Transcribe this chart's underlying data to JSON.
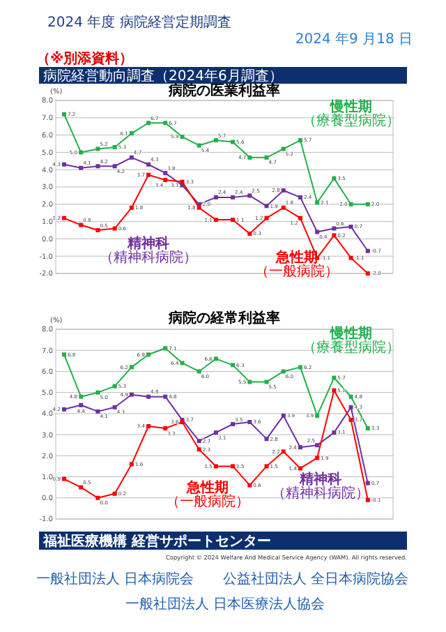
{
  "chart_data": [
    {
      "type": "line",
      "title": "病院の医業利益率",
      "ylabel": "(%)",
      "annotations": [
        "2024 年度 病院経営定期調査",
        "2024 年9 月18 日",
        "（※別添資料）",
        "病院経営動向調査（2024年6月調査）"
      ],
      "categories": [
        null,
        null,
        null,
        null,
        null,
        null,
        null,
        null,
        null,
        null,
        null,
        null,
        null,
        null,
        null,
        null,
        null,
        null,
        null,
        null
      ],
      "ylim": [
        -2,
        8
      ],
      "yticks": [
        {
          "value": -2,
          "label": "-2.0"
        },
        {
          "value": -1,
          "label": "-1.0"
        },
        {
          "value": 0,
          "label": "0.0"
        },
        {
          "value": 1,
          "label": "1.0"
        },
        {
          "value": 2,
          "label": "2.0"
        },
        {
          "value": 3,
          "label": "3.0"
        },
        {
          "value": 4,
          "label": "4.0"
        },
        {
          "value": 5,
          "label": "5.0"
        },
        {
          "value": 6,
          "label": "6.0"
        },
        {
          "value": 7,
          "label": "7.0"
        },
        {
          "value": 8,
          "label": "8.0"
        }
      ],
      "grid": "y",
      "marker": "square",
      "legend": false,
      "tick_labels": "y",
      "series": [
        {
          "name": "慢性期（療養型病院）",
          "color": "#22b04b",
          "values": [
            7.2,
            5.0,
            5.2,
            5.3,
            6.1,
            6.7,
            6.7,
            5.9,
            5.4,
            5.7,
            5.6,
            4.7,
            4.7,
            5.2,
            5.7,
            2.1,
            3.5,
            2.0,
            2.0,
            null
          ],
          "value_labels": [
            "7.2",
            "5.0",
            "5.2",
            "5.3",
            "6.1",
            "6.7",
            "6.7",
            "5.9",
            "5.4",
            "5.7",
            "5.6",
            "4.7",
            "4.7",
            "5.2",
            "5.7",
            "2.1",
            "3.5",
            "2.0",
            "2.0",
            null
          ]
        },
        {
          "name": "精神科（精神科病院）",
          "color": "#7030a0",
          "values": [
            4.3,
            4.1,
            4.2,
            4.2,
            4.7,
            4.3,
            3.8,
            3.1,
            2.0,
            2.4,
            2.4,
            2.5,
            1.9,
            2.8,
            2.4,
            0.4,
            0.6,
            0.7,
            -0.7,
            null
          ],
          "value_labels": [
            "4.3",
            "4.1",
            "4.2",
            "4.2",
            "4.7",
            "4.3",
            "3.8",
            "3.1",
            "2.0",
            "2.4",
            "2.4",
            "2.5",
            "1.9",
            "2.8",
            "2.4",
            "0.4",
            "0.6",
            "0.7",
            "-0.7",
            null
          ]
        },
        {
          "name": "急性期（一般病院）",
          "color": "#ff0000",
          "values": [
            1.2,
            0.8,
            0.5,
            0.6,
            1.8,
            3.7,
            3.4,
            3.3,
            1.8,
            1.1,
            1.1,
            0.3,
            1.2,
            1.8,
            1.2,
            -1.1,
            0.2,
            -1.1,
            -2.0,
            null
          ],
          "value_labels": [
            "1.2",
            "0.8",
            "0.5",
            "0.6",
            "1.8",
            "3.7",
            "3.4",
            "3.3",
            "1.8",
            "1.1",
            "1.1",
            "0.3",
            "1.2",
            "1.8",
            "1.2",
            "-1.1",
            "0.2",
            "-1.1",
            "-2.0",
            null
          ]
        }
      ]
    },
    {
      "type": "line",
      "title": "病院の経常利益率",
      "ylabel": "(%)",
      "annotations": [
        "福祉医療機構 経営サポートセンター",
        "Copyright © 2024 Welfare And Medical Service Agency (WAM). All rights reserved.",
        "一般社団法人 日本病院会",
        "公益社団法人 全日本病院協会",
        "一般社団法人 日本医療法人協会"
      ],
      "categories": [
        null,
        null,
        null,
        null,
        null,
        null,
        null,
        null,
        null,
        null,
        null,
        null,
        null,
        null,
        null,
        null,
        null,
        null,
        null,
        null
      ],
      "ylim": [
        -1,
        8
      ],
      "yticks": [
        {
          "value": -1,
          "label": "-1.0"
        },
        {
          "value": 0,
          "label": "0.0"
        },
        {
          "value": 1,
          "label": "1.0"
        },
        {
          "value": 2,
          "label": "2.0"
        },
        {
          "value": 3,
          "label": "3.0"
        },
        {
          "value": 4,
          "label": "4.0"
        },
        {
          "value": 5,
          "label": "5.0"
        },
        {
          "value": 6,
          "label": "6.0"
        },
        {
          "value": 7,
          "label": "7.0"
        },
        {
          "value": 8,
          "label": "8.0"
        }
      ],
      "grid": "y",
      "marker": "square",
      "legend": false,
      "tick_labels": "y",
      "series": [
        {
          "name": "慢性期（療養型病院）",
          "color": "#22b04b",
          "values": [
            6.8,
            4.8,
            5.0,
            5.3,
            6.2,
            6.8,
            7.1,
            6.4,
            6.0,
            6.6,
            6.3,
            5.5,
            5.5,
            6.0,
            6.2,
            3.9,
            5.7,
            4.8,
            3.3,
            null
          ],
          "value_labels": [
            "6.8",
            "4.8",
            "5.0",
            "5.3",
            "6.2",
            "6.8",
            "7.1",
            "6.4",
            "6.0",
            "6.6",
            "6.3",
            "5.5",
            "5.5",
            "6.0",
            "6.2",
            "3.9",
            "5.7",
            "4.8",
            "3.3",
            null
          ]
        },
        {
          "name": "精神科（精神科病院）",
          "color": "#7030a0",
          "values": [
            4.2,
            4.4,
            4.1,
            4.3,
            4.9,
            4.8,
            4.8,
            3.7,
            2.7,
            3.1,
            3.5,
            3.6,
            2.8,
            3.9,
            2.4,
            2.5,
            3.1,
            4.3,
            0.7,
            null
          ],
          "value_labels": [
            "4.2",
            "4.4",
            "4.1",
            "4.3",
            "4.9",
            "4.8",
            "4.8",
            "3.7",
            "2.7",
            "3.1",
            "3.5",
            "3.6",
            "2.8",
            "3.9",
            "2.4",
            "2.5",
            "3.1",
            "4.3",
            "0.7",
            null
          ]
        },
        {
          "name": "急性期（一般病院）",
          "color": "#ff0000",
          "values": [
            0.9,
            0.5,
            0.0,
            0.2,
            1.6,
            3.4,
            3.3,
            3.6,
            2.3,
            1.5,
            1.5,
            0.6,
            1.5,
            2.2,
            1.4,
            1.9,
            5.1,
            3.7,
            -0.1,
            null
          ],
          "value_labels": [
            "0.9",
            "0.5",
            "0.0",
            "0.2",
            "1.6",
            "3.4",
            "3.3",
            "3.6",
            "2.3",
            "1.5",
            "1.5",
            "0.6",
            "1.5",
            "2.2",
            "1.4",
            "1.9",
            "5.1",
            "3.7",
            "-0.1",
            null
          ]
        }
      ]
    }
  ]
}
